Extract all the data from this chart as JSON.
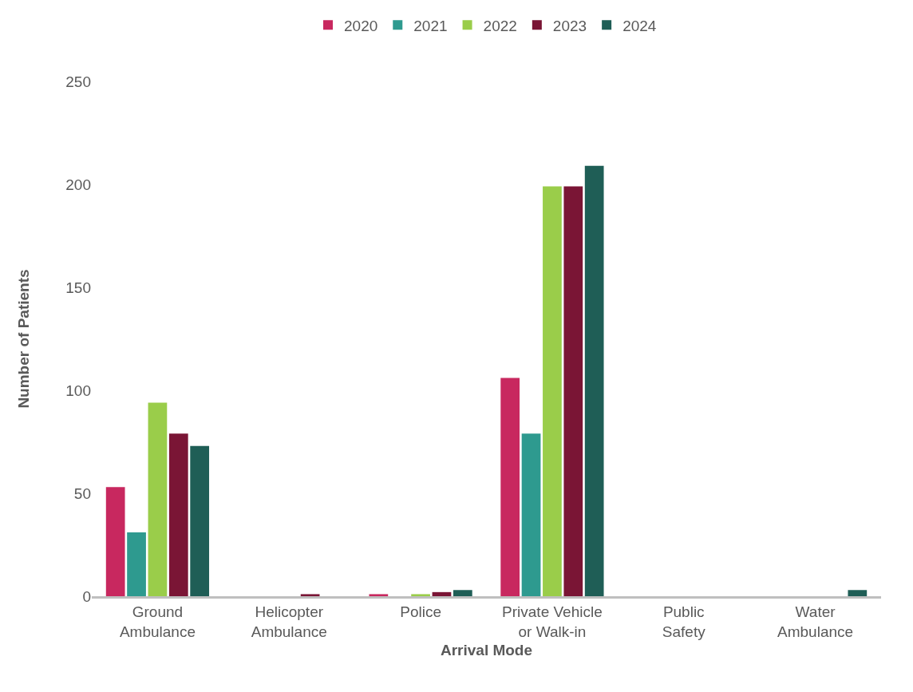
{
  "chart_data": {
    "type": "bar",
    "xlabel": "Arrival Mode",
    "ylabel": "Number of Patients",
    "categories": [
      "Ground Ambulance",
      "Helicopter Ambulance",
      "Police",
      "Private Vehicle or Walk-in",
      "Public Safety",
      "Water Ambulance"
    ],
    "series": [
      {
        "name": "2020",
        "color": "#c8285f",
        "values": [
          53,
          0,
          1,
          106,
          0,
          0
        ]
      },
      {
        "name": "2021",
        "color": "#2e9a8f",
        "values": [
          31,
          0,
          0,
          79,
          0,
          0
        ]
      },
      {
        "name": "2022",
        "color": "#9acd4a",
        "values": [
          94,
          0,
          1,
          199,
          0,
          0
        ]
      },
      {
        "name": "2023",
        "color": "#7a1535",
        "values": [
          79,
          1,
          2,
          199,
          0,
          0
        ]
      },
      {
        "name": "2024",
        "color": "#1f5e56",
        "values": [
          73,
          0,
          3,
          209,
          0,
          3
        ]
      }
    ],
    "ylim": [
      0,
      250
    ],
    "yticks": [
      0,
      50,
      100,
      150,
      200,
      250
    ],
    "grid": false,
    "legend": "top"
  }
}
